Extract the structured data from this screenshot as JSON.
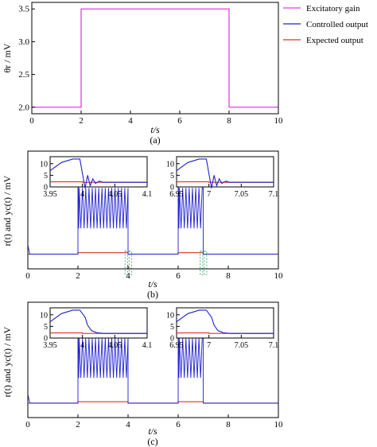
{
  "colors": {
    "excitatory": "#e040e0",
    "controlled": "#2020d0",
    "expected": "#e03030",
    "guide": "#20a060"
  },
  "legend": {
    "items": [
      {
        "label": "Excitatory gain",
        "series": "excitatory"
      },
      {
        "label": "Controlled output",
        "series": "controlled"
      },
      {
        "label": "Expected output",
        "series": "expected"
      }
    ]
  },
  "chart_data": [
    {
      "id": "a",
      "type": "line",
      "caption": "(a)",
      "xlabel": "t/s",
      "ylabel": "θr / mV",
      "xlim": [
        0,
        10
      ],
      "ylim": [
        1.9,
        3.6
      ],
      "xticks": [
        "0",
        "2",
        "4",
        "6",
        "8",
        "10"
      ],
      "yticks": [
        "2.0",
        "2.5",
        "3.0",
        "3.5"
      ],
      "series": [
        {
          "name": "Excitatory gain",
          "key": "excitatory",
          "x": [
            0,
            2,
            2,
            8,
            8,
            10
          ],
          "y": [
            2.0,
            2.0,
            3.5,
            3.5,
            2.0,
            2.0
          ]
        }
      ]
    },
    {
      "id": "b",
      "type": "line",
      "caption": "(b)",
      "xlabel": "t/s",
      "ylabel": "r(t) and yc(t) / mV",
      "xlim": [
        0,
        10
      ],
      "ylim": [
        0,
        16
      ],
      "xticks": [
        "0",
        "2",
        "4",
        "6",
        "8",
        "10"
      ],
      "yticks": [],
      "series": [
        {
          "name": "Controlled output",
          "key": "controlled",
          "baseline": 2.0,
          "bursts": [
            {
              "start": 2,
              "end": 4,
              "peak": 15,
              "hi": 11,
              "lo": 5.5
            },
            {
              "start": 6,
              "end": 7,
              "peak": 15,
              "hi": 11,
              "lo": 5.5
            }
          ]
        },
        {
          "name": "Expected output",
          "key": "expected",
          "x": [
            0,
            2,
            2,
            4,
            4,
            6,
            6,
            7,
            7,
            10
          ],
          "y": [
            2.0,
            2.0,
            2.2,
            2.2,
            2.0,
            2.0,
            2.2,
            2.2,
            2.0,
            2.0
          ]
        }
      ],
      "insets": [
        {
          "xlim": [
            3.95,
            4.1
          ],
          "ylim": [
            0,
            13
          ],
          "xticks": [
            "3.95",
            "4",
            "4.05",
            "4.1"
          ],
          "yticks": [
            "0",
            "5",
            "10"
          ],
          "drop_at": 4.0,
          "oscillation": true
        },
        {
          "xlim": [
            6.95,
            7.1
          ],
          "ylim": [
            0,
            13
          ],
          "xticks": [
            "6.95",
            "7",
            "7.05",
            "7.1"
          ],
          "yticks": [
            "0",
            "5",
            "10"
          ],
          "drop_at": 7.0,
          "oscillation": true
        }
      ]
    },
    {
      "id": "c",
      "type": "line",
      "caption": "(c)",
      "xlabel": "t/s",
      "ylabel": "r(t) and yc(t) / mV",
      "xlim": [
        0,
        10
      ],
      "ylim": [
        0,
        16
      ],
      "xticks": [
        "0",
        "2",
        "4",
        "6",
        "8",
        "10"
      ],
      "yticks": [],
      "series": [
        {
          "name": "Controlled output",
          "key": "controlled",
          "baseline": 2.0,
          "bursts": [
            {
              "start": 2,
              "end": 4,
              "peak": 15,
              "hi": 11,
              "lo": 5.5
            },
            {
              "start": 6,
              "end": 7,
              "peak": 15,
              "hi": 11,
              "lo": 5.5
            }
          ]
        },
        {
          "name": "Expected output",
          "key": "expected",
          "x": [
            0,
            2,
            2,
            4,
            4,
            6,
            6,
            7,
            7,
            10
          ],
          "y": [
            2.0,
            2.0,
            2.2,
            2.2,
            2.0,
            2.0,
            2.2,
            2.2,
            2.0,
            2.0
          ]
        }
      ],
      "insets": [
        {
          "xlim": [
            3.95,
            4.1
          ],
          "ylim": [
            0,
            13
          ],
          "xticks": [
            "3.95",
            "4",
            "4.05",
            "4.1"
          ],
          "yticks": [
            "0",
            "5",
            "10"
          ],
          "drop_at": 4.0,
          "oscillation": false
        },
        {
          "xlim": [
            6.95,
            7.1
          ],
          "ylim": [
            0,
            13
          ],
          "xticks": [
            "6.95",
            "7",
            "7.05",
            "7.1"
          ],
          "yticks": [
            "0",
            "5",
            "10"
          ],
          "drop_at": 7.0,
          "oscillation": false
        }
      ]
    }
  ]
}
